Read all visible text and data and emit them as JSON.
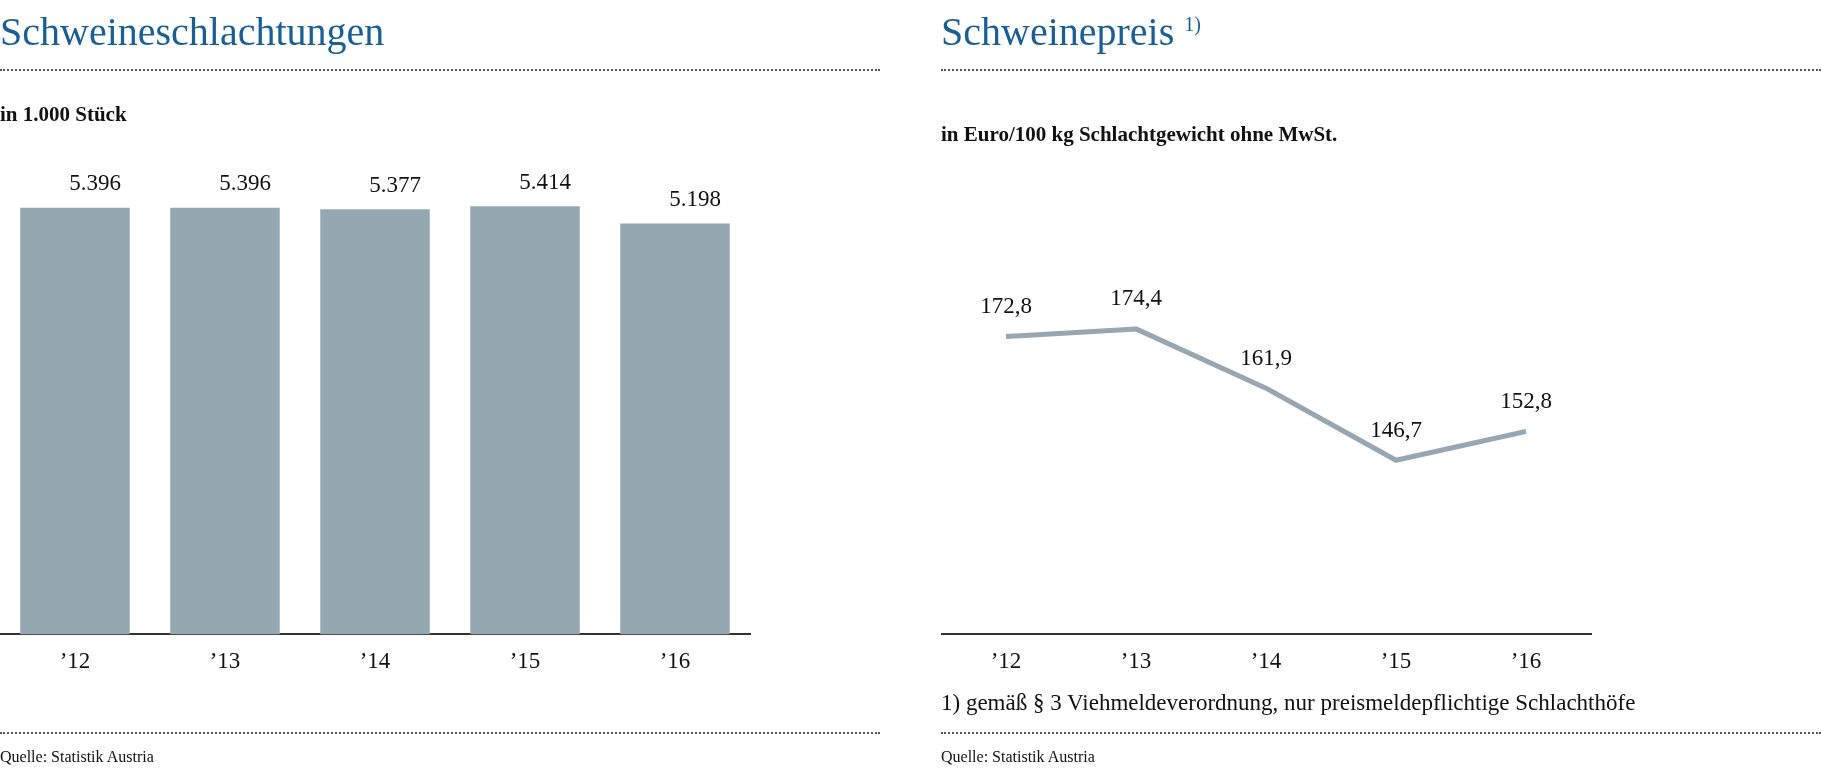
{
  "chart_data": [
    {
      "type": "bar",
      "title": "Schweineschlachtungen",
      "subtitle": "in 1.000 Stück",
      "categories": [
        "’12",
        "’13",
        "’14",
        "’15",
        "’16"
      ],
      "series": [
        {
          "color": "#95a7b1",
          "values": [
            5396,
            5396,
            5377,
            5414,
            5198
          ],
          "value_labels": [
            "5.396",
            "5.396",
            "5.377",
            "5.414",
            "5.198"
          ]
        }
      ],
      "tick_labels": "x",
      "grid": false,
      "legend": false,
      "annotations": [
        "Quelle: Statistik Austria"
      ]
    },
    {
      "type": "line",
      "title": "Schweinepreis $^{1)}$",
      "subtitle": "in Euro/100 kg Schlachtgewicht ohne MwSt.",
      "categories": [
        "’12",
        "’13",
        "’14",
        "’15",
        "’16"
      ],
      "series": [
        {
          "color": "#97a6b0",
          "values": [
            172.8,
            174.4,
            161.9,
            146.7,
            152.8
          ],
          "value_labels": [
            "172,8",
            "174,4",
            "161,9",
            "146,7",
            "152,8"
          ]
        }
      ],
      "tick_labels": "x",
      "grid": false,
      "legend": false,
      "marker": "none",
      "annotations": [
        "1) gemäß § 3 Viehmeldeverordnung, nur preismeldepflichtige Schlachthöfe",
        "Quelle: Statistik Austria"
      ]
    }
  ]
}
